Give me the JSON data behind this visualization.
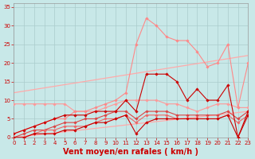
{
  "background_color": "#c8e8e8",
  "grid_color": "#aacccc",
  "xlabel": "Vent moyen/en rafales ( km/h )",
  "xlabel_color": "#cc0000",
  "xlabel_fontsize": 7,
  "tick_color": "#cc0000",
  "tick_fontsize": 5,
  "xlim": [
    0,
    23
  ],
  "ylim": [
    0,
    36
  ],
  "yticks": [
    0,
    5,
    10,
    15,
    20,
    25,
    30,
    35
  ],
  "xticks": [
    0,
    1,
    2,
    3,
    4,
    5,
    6,
    7,
    8,
    9,
    10,
    11,
    12,
    13,
    14,
    15,
    16,
    17,
    18,
    19,
    20,
    21,
    22,
    23
  ],
  "series": [
    {
      "name": "trend_upper",
      "x": [
        0,
        23
      ],
      "y": [
        12,
        22
      ],
      "color": "#ffaaaa",
      "linewidth": 0.9,
      "marker": null,
      "zorder": 2
    },
    {
      "name": "trend_lower",
      "x": [
        0,
        23
      ],
      "y": [
        0,
        7
      ],
      "color": "#ffaaaa",
      "linewidth": 0.9,
      "marker": null,
      "zorder": 2
    },
    {
      "name": "light_pink_wavy_high",
      "x": [
        0,
        1,
        2,
        3,
        4,
        5,
        6,
        7,
        8,
        9,
        10,
        11,
        12,
        13,
        14,
        15,
        16,
        17,
        18,
        19,
        20,
        21,
        22,
        23
      ],
      "y": [
        9,
        9,
        9,
        9,
        9,
        9,
        7,
        7,
        7,
        8,
        9,
        10,
        10,
        10,
        10,
        9,
        9,
        8,
        7,
        8,
        9,
        9,
        8,
        8
      ],
      "color": "#ff9999",
      "linewidth": 0.8,
      "marker": "D",
      "markersize": 1.8,
      "zorder": 3
    },
    {
      "name": "light_pink_peak",
      "x": [
        0,
        1,
        2,
        3,
        4,
        5,
        6,
        7,
        8,
        9,
        10,
        11,
        12,
        13,
        14,
        15,
        16,
        17,
        18,
        19,
        20,
        21,
        22,
        23
      ],
      "y": [
        1,
        2,
        3,
        4,
        5,
        5,
        7,
        7,
        8,
        9,
        10,
        12,
        25,
        32,
        30,
        27,
        26,
        26,
        23,
        19,
        20,
        25,
        8,
        20
      ],
      "color": "#ff8888",
      "linewidth": 0.8,
      "marker": "D",
      "markersize": 1.8,
      "zorder": 4
    },
    {
      "name": "dark_red_upper",
      "x": [
        0,
        1,
        2,
        3,
        4,
        5,
        6,
        7,
        8,
        9,
        10,
        11,
        12,
        13,
        14,
        15,
        16,
        17,
        18,
        19,
        20,
        21,
        22,
        23
      ],
      "y": [
        1,
        2,
        3,
        4,
        5,
        6,
        6,
        6,
        7,
        7,
        7,
        10,
        7,
        17,
        17,
        17,
        15,
        10,
        13,
        10,
        10,
        14,
        0,
        7
      ],
      "color": "#cc0000",
      "linewidth": 0.8,
      "marker": "D",
      "markersize": 1.8,
      "zorder": 5
    },
    {
      "name": "dark_red_lower",
      "x": [
        0,
        1,
        2,
        3,
        4,
        5,
        6,
        7,
        8,
        9,
        10,
        11,
        12,
        13,
        14,
        15,
        16,
        17,
        18,
        19,
        20,
        21,
        22,
        23
      ],
      "y": [
        0,
        0,
        1,
        1,
        1,
        2,
        2,
        3,
        4,
        4,
        5,
        6,
        1,
        4,
        5,
        5,
        5,
        5,
        5,
        5,
        5,
        6,
        0,
        6
      ],
      "color": "#cc0000",
      "linewidth": 0.8,
      "marker": "D",
      "markersize": 1.8,
      "zorder": 5
    },
    {
      "name": "medium_red_rising",
      "x": [
        0,
        1,
        2,
        3,
        4,
        5,
        6,
        7,
        8,
        9,
        10,
        11,
        12,
        13,
        14,
        15,
        16,
        17,
        18,
        19,
        20,
        21,
        22,
        23
      ],
      "y": [
        0,
        1,
        2,
        2,
        3,
        4,
        4,
        5,
        5,
        6,
        7,
        7,
        5,
        7,
        7,
        7,
        6,
        6,
        6,
        6,
        6,
        7,
        5,
        7
      ],
      "color": "#dd4444",
      "linewidth": 0.8,
      "marker": "D",
      "markersize": 1.8,
      "zorder": 4
    },
    {
      "name": "medium_pink_rising",
      "x": [
        0,
        1,
        2,
        3,
        4,
        5,
        6,
        7,
        8,
        9,
        10,
        11,
        12,
        13,
        14,
        15,
        16,
        17,
        18,
        19,
        20,
        21,
        22,
        23
      ],
      "y": [
        0,
        0,
        1,
        2,
        2,
        3,
        3,
        3,
        4,
        5,
        5,
        6,
        4,
        6,
        6,
        6,
        5,
        5,
        5,
        5,
        5,
        6,
        4,
        6
      ],
      "color": "#ee6666",
      "linewidth": 0.8,
      "marker": "D",
      "markersize": 1.8,
      "zorder": 4
    }
  ]
}
